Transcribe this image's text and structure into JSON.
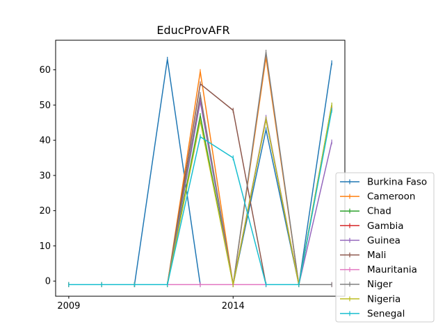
{
  "chart_data": {
    "type": "line",
    "title": "EducProvAFR",
    "xlabel": "",
    "ylabel": "",
    "x": [
      2009,
      2010,
      2011,
      2012,
      2013,
      2014,
      2015,
      2016,
      2017
    ],
    "xticks": [
      2009,
      2014
    ],
    "xlim": [
      2008.6,
      2017.4
    ],
    "yticks": [
      0,
      10,
      20,
      30,
      40,
      50,
      60
    ],
    "ylim": [
      -4.3,
      68.4
    ],
    "grid": false,
    "legend_position": "lower-right, outside plot",
    "series": [
      {
        "name": "Burkina Faso",
        "color": "#1f77b4",
        "values": [
          -1,
          -1,
          -1,
          63,
          -1,
          -1,
          43,
          -1,
          62
        ]
      },
      {
        "name": "Cameroon",
        "color": "#ff7f0e",
        "values": [
          -1,
          -1,
          -1,
          -1,
          59.5,
          -1,
          63.5,
          -1,
          49
        ]
      },
      {
        "name": "Chad",
        "color": "#2ca02c",
        "values": [
          -1,
          -1,
          -1,
          -1,
          47,
          -1,
          46,
          -1,
          50
        ]
      },
      {
        "name": "Gambia",
        "color": "#d62728",
        "values": [
          -1,
          -1,
          -1,
          -1,
          51.5,
          -1,
          46,
          -1,
          49
        ]
      },
      {
        "name": "Guinea",
        "color": "#9467bd",
        "values": [
          -1,
          -1,
          -1,
          -1,
          51,
          -1,
          46.5,
          -1,
          39.5
        ]
      },
      {
        "name": "Mali",
        "color": "#8c564b",
        "values": [
          -1,
          -1,
          -1,
          -1,
          56,
          48.5,
          -1,
          -1,
          -1
        ]
      },
      {
        "name": "Mauritania",
        "color": "#e377c2",
        "values": [
          -1,
          -1,
          -1,
          -1,
          -1,
          -1,
          -1,
          -1,
          -1
        ]
      },
      {
        "name": "Niger",
        "color": "#7f7f7f",
        "values": [
          -1,
          -1,
          -1,
          -1,
          53,
          -1,
          65,
          -1,
          -1
        ]
      },
      {
        "name": "Nigeria",
        "color": "#bcbd22",
        "values": [
          -1,
          -1,
          -1,
          -1,
          45.5,
          -1,
          46,
          -1,
          50
        ]
      },
      {
        "name": "Senegal",
        "color": "#17becf",
        "values": [
          -1,
          -1,
          -1,
          -1,
          41,
          35,
          -1,
          -1,
          48.5
        ]
      }
    ]
  }
}
